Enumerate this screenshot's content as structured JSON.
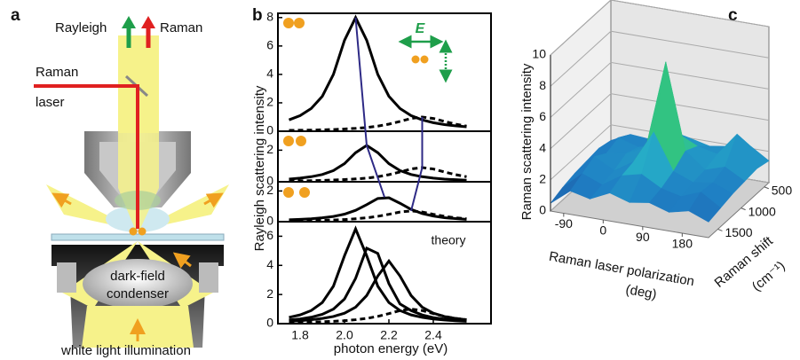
{
  "figure_labels": [
    "a",
    "b",
    "c"
  ],
  "diagram": {
    "rayleigh": "Rayleigh",
    "raman": "Raman",
    "raman_laser": [
      "Raman",
      "laser"
    ],
    "condenser": [
      "dark-field",
      "condenser"
    ],
    "illumination": "white light illumination"
  },
  "chart_data": [
    {
      "type": "line",
      "ylabel": "Rayleigh scattering intensity",
      "xlabel": "photon energy (eV)",
      "x": [
        1.75,
        1.8,
        1.85,
        1.9,
        1.95,
        2.0,
        2.05,
        2.1,
        2.15,
        2.2,
        2.25,
        2.3,
        2.35,
        2.4,
        2.45,
        2.5,
        2.55
      ],
      "xlim": [
        1.7,
        2.66
      ],
      "xticks": [
        1.8,
        {
          "value": 2,
          "label": "2.0"
        },
        2.2,
        2.4
      ],
      "field_label": "E",
      "panels": [
        {
          "ylim": [
            0,
            8.3
          ],
          "yticks": [
            0,
            2,
            4,
            6,
            8
          ],
          "series": [
            {
              "style": "solid",
              "color": "#000000",
              "values": [
                0.8,
                1.1,
                1.6,
                2.46,
                4,
                6.4,
                8,
                6.4,
                4,
                2.46,
                1.6,
                1.1,
                0.8,
                0.6,
                0.47,
                0.38,
                0.31
              ]
            },
            {
              "style": "dashed",
              "color": "#000000",
              "values": [
                0.06,
                0.07,
                0.08,
                0.1,
                0.12,
                0.16,
                0.2,
                0.26,
                0.36,
                0.5,
                0.69,
                0.9,
                1,
                0.9,
                0.69,
                0.5,
                0.36
              ]
            }
          ]
        },
        {
          "ylim": [
            0,
            3.2
          ],
          "yticks": [
            0,
            2
          ],
          "series": [
            {
              "style": "solid",
              "color": "#000000",
              "values": [
                0.17,
                0.23,
                0.32,
                0.46,
                0.71,
                1.15,
                1.84,
                2.3,
                1.84,
                1.15,
                0.71,
                0.46,
                0.32,
                0.23,
                0.17,
                0.13,
                0.1
              ]
            },
            {
              "style": "dashed",
              "color": "#000000",
              "values": [
                0.05,
                0.06,
                0.07,
                0.09,
                0.11,
                0.14,
                0.18,
                0.23,
                0.32,
                0.45,
                0.62,
                0.81,
                0.9,
                0.81,
                0.62,
                0.45,
                0.32
              ]
            }
          ]
        },
        {
          "ylim": [
            0,
            2.6
          ],
          "yticks": [
            0,
            2
          ],
          "series": [
            {
              "style": "solid",
              "color": "#000000",
              "values": [
                0.12,
                0.15,
                0.19,
                0.25,
                0.34,
                0.49,
                0.74,
                1.11,
                1.51,
                1.56,
                1.2,
                0.8,
                0.53,
                0.37,
                0.26,
                0.2,
                0.15
              ]
            },
            {
              "style": "dashed",
              "color": "#000000",
              "values": [
                0.05,
                0.06,
                0.07,
                0.09,
                0.11,
                0.14,
                0.19,
                0.25,
                0.35,
                0.48,
                0.63,
                0.7,
                0.63,
                0.48,
                0.35,
                0.25,
                0.19
              ]
            }
          ]
        },
        {
          "ylim": [
            0,
            7
          ],
          "yticks": [
            0,
            2,
            4,
            6
          ],
          "annotation": "theory",
          "series": [
            {
              "style": "solid",
              "color": "#000000",
              "values": [
                0.43,
                0.6,
                0.9,
                1.45,
                2.57,
                4.66,
                6.5,
                4.66,
                2.57,
                1.45,
                0.9,
                0.6,
                0.43,
                0.32,
                0.25,
                0.2,
                0.16
              ]
            },
            {
              "style": "solid",
              "color": "#000000",
              "values": [
                0.25,
                0.32,
                0.44,
                0.64,
                1.0,
                1.69,
                3.11,
                5.18,
                4.82,
                2.75,
                1.35,
                0.9,
                0.6,
                0.41,
                0.31,
                0.23,
                0.18
              ]
            },
            {
              "style": "solid",
              "color": "#000000",
              "values": [
                0.17,
                0.2,
                0.27,
                0.36,
                0.49,
                0.72,
                1.13,
                1.93,
                3.27,
                4.3,
                3.27,
                1.93,
                1.13,
                0.72,
                0.49,
                0.36,
                0.27
              ]
            },
            {
              "style": "dashed",
              "color": "#000000",
              "values": [
                0.07,
                0.09,
                0.1,
                0.13,
                0.16,
                0.2,
                0.27,
                0.36,
                0.5,
                0.69,
                0.9,
                1.0,
                0.9,
                0.69,
                0.5,
                0.36,
                0.27
              ]
            }
          ]
        }
      ],
      "peak_traces": [
        {
          "color": "#2e2a86",
          "x": [
            2.05,
            2.1,
            2.18
          ],
          "y": [
            8,
            2.3,
            1.6
          ]
        },
        {
          "color": "#2e2a86",
          "x": [
            2.35,
            2.35,
            2.3
          ],
          "y": [
            1.0,
            0.9,
            0.7
          ]
        }
      ]
    },
    {
      "type": "surface",
      "zlabel": "Raman scattering intensity",
      "xlabel": [
        "Raman laser polarization",
        "(deg)"
      ],
      "ylabel": [
        "Raman shift",
        "(cm⁻¹)"
      ],
      "xlim": [
        -120,
        240
      ],
      "ylim": [
        1700,
        400
      ],
      "zlim": [
        0,
        10
      ],
      "xticks": [
        -90,
        0,
        90,
        180
      ],
      "yticks": [
        500,
        1000,
        1500
      ],
      "zticks": [
        0,
        2,
        4,
        6,
        8,
        10
      ],
      "x_grid": [
        -120,
        -75,
        -30,
        15,
        60,
        105,
        150,
        195,
        240
      ],
      "y_grid": [
        1700,
        1440,
        1180,
        920,
        660,
        400
      ],
      "z": [
        [
          0.5,
          1.5,
          1.2,
          1.8,
          1.4,
          1.6,
          1.2,
          1.5,
          1.0
        ],
        [
          0.8,
          1.9,
          1.4,
          2.2,
          2.5,
          1.8,
          1.5,
          2.0,
          1.2
        ],
        [
          1.0,
          2.3,
          1.6,
          2.4,
          4.5,
          2.2,
          1.7,
          1.9,
          1.4
        ],
        [
          1.1,
          1.8,
          2.0,
          2.6,
          8.3,
          2.8,
          1.8,
          2.2,
          1.5
        ],
        [
          1.2,
          2.1,
          1.7,
          2.0,
          3.0,
          2.4,
          2.1,
          3.6,
          1.6
        ],
        [
          1.0,
          1.6,
          1.5,
          1.8,
          2.0,
          1.7,
          1.9,
          2.2,
          1.4
        ]
      ],
      "colormap": [
        "#1b3a8c",
        "#1f7fc4",
        "#27b6c8",
        "#35c76e",
        "#c9df24",
        "#f2e83a"
      ]
    }
  ]
}
